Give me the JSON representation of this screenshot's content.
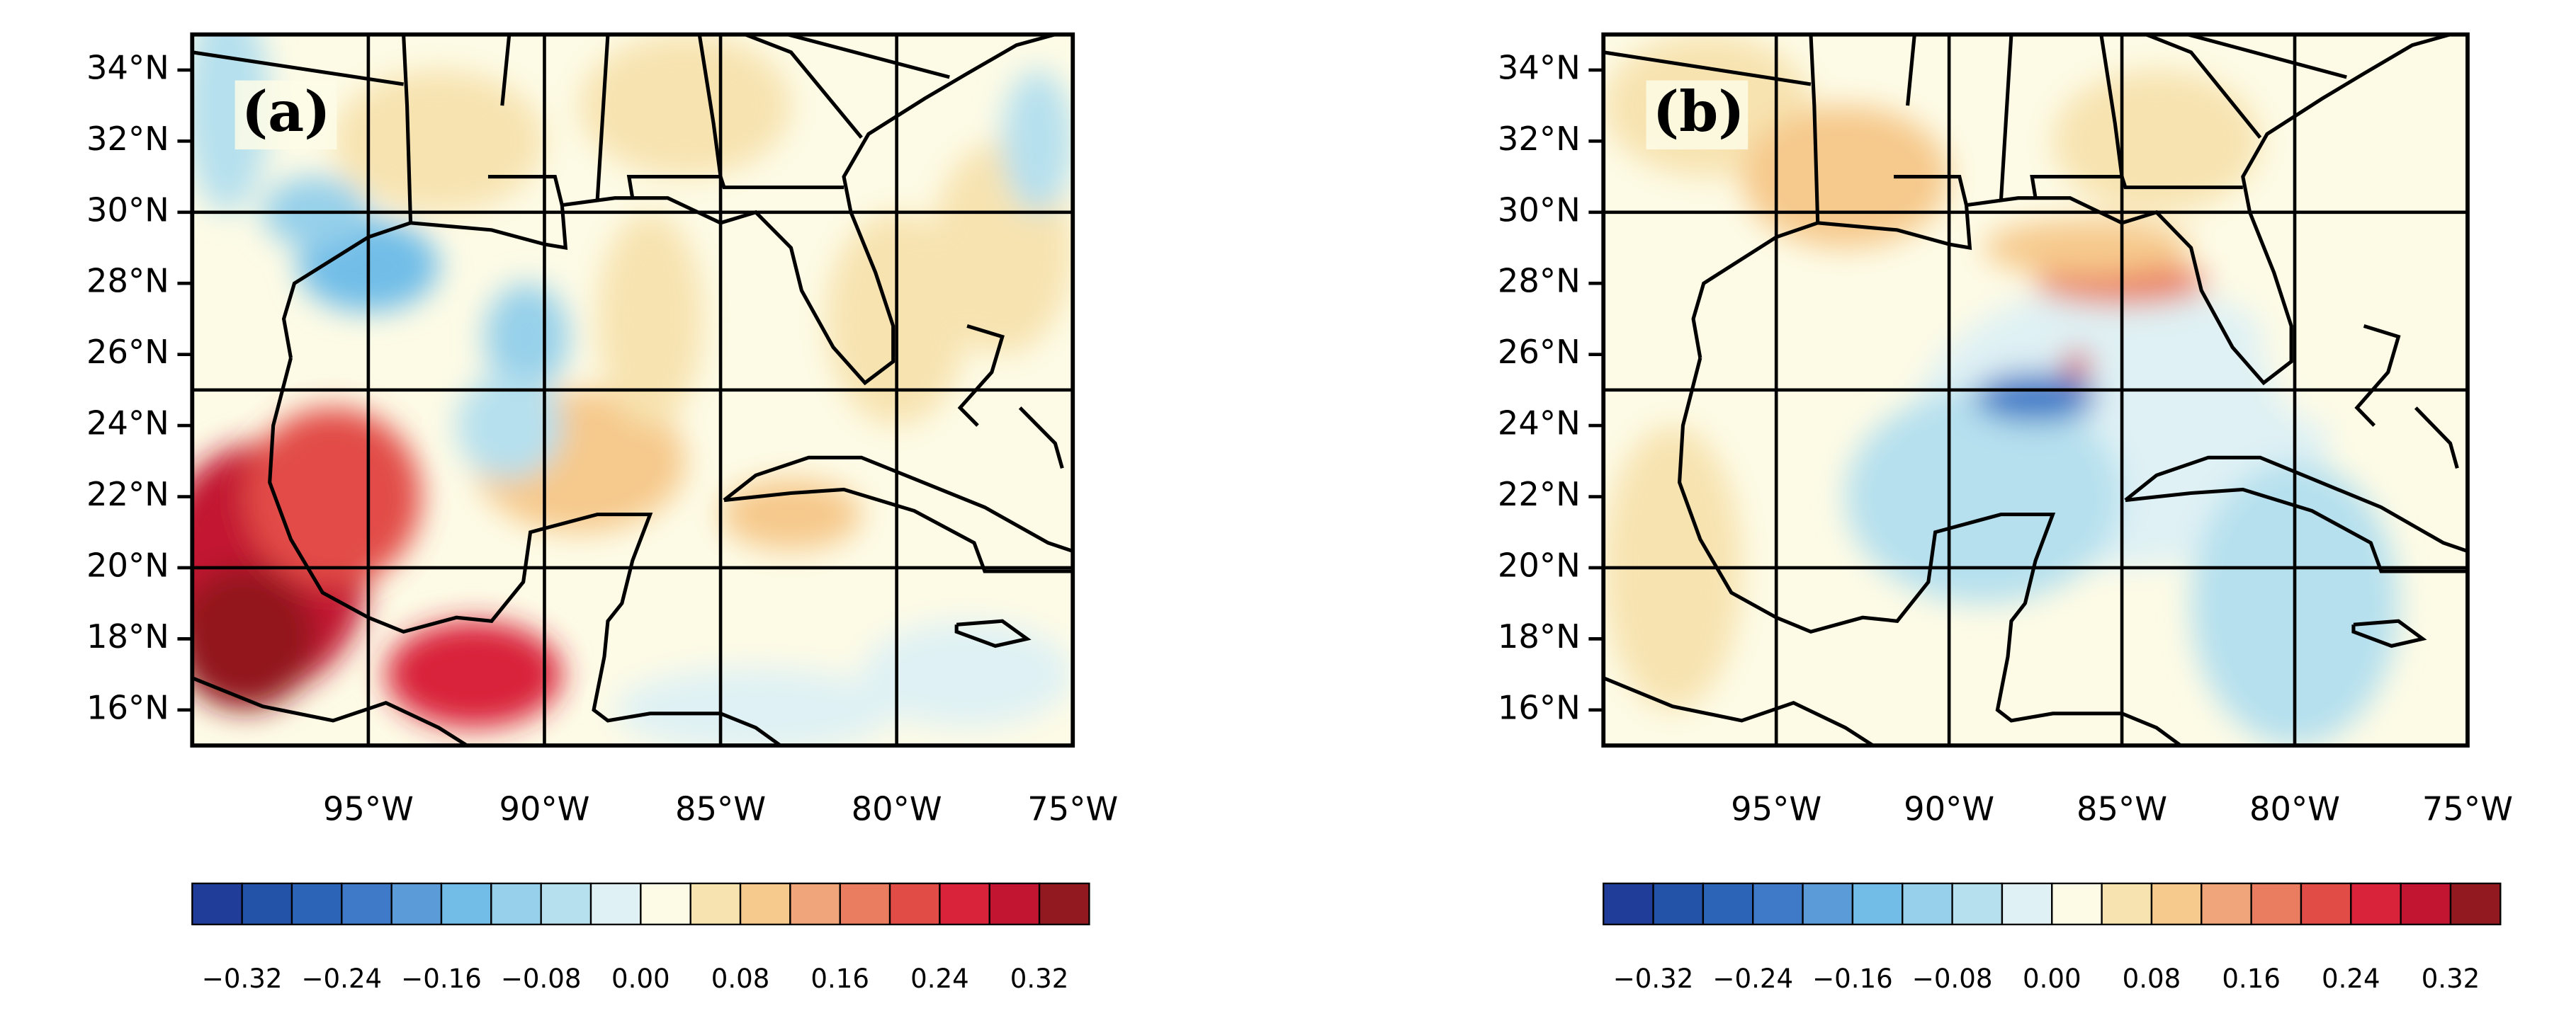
{
  "panels": [
    {
      "label": "(a)",
      "xlim": [
        -100,
        -75
      ],
      "ylim": [
        15,
        35
      ],
      "xticks": [
        {
          "value": -95,
          "label": "95°W"
        },
        {
          "value": -90,
          "label": "90°W"
        },
        {
          "value": -85,
          "label": "85°W"
        },
        {
          "value": -80,
          "label": "80°W"
        },
        {
          "value": -75,
          "label": "75°W"
        }
      ],
      "yticks": [
        {
          "value": 16,
          "label": "16°N"
        },
        {
          "value": 18,
          "label": "18°N"
        },
        {
          "value": 20,
          "label": "20°N"
        },
        {
          "value": 22,
          "label": "22°N"
        },
        {
          "value": 24,
          "label": "24°N"
        },
        {
          "value": 26,
          "label": "26°N"
        },
        {
          "value": 28,
          "label": "28°N"
        },
        {
          "value": 30,
          "label": "30°N"
        },
        {
          "value": 32,
          "label": "32°N"
        },
        {
          "value": 34,
          "label": "34°N"
        }
      ],
      "lat_grid": [
        20,
        25,
        30
      ]
    },
    {
      "label": "(b)",
      "xlim": [
        -100,
        -75
      ],
      "ylim": [
        15,
        35
      ],
      "xticks": [
        {
          "value": -95,
          "label": "95°W"
        },
        {
          "value": -90,
          "label": "90°W"
        },
        {
          "value": -85,
          "label": "85°W"
        },
        {
          "value": -80,
          "label": "80°W"
        },
        {
          "value": -75,
          "label": "75°W"
        }
      ],
      "yticks": [
        {
          "value": 16,
          "label": "16°N"
        },
        {
          "value": 18,
          "label": "18°N"
        },
        {
          "value": 20,
          "label": "20°N"
        },
        {
          "value": 22,
          "label": "22°N"
        },
        {
          "value": 24,
          "label": "24°N"
        },
        {
          "value": 26,
          "label": "26°N"
        },
        {
          "value": 28,
          "label": "28°N"
        },
        {
          "value": 30,
          "label": "30°N"
        },
        {
          "value": 32,
          "label": "32°N"
        },
        {
          "value": 34,
          "label": "34°N"
        }
      ],
      "lat_grid": [
        20,
        25,
        30
      ]
    }
  ],
  "colorbar": {
    "clim": [
      -0.36,
      0.36
    ],
    "colors": [
      "#1f3d99",
      "#2353a8",
      "#2c65b8",
      "#3e7ac8",
      "#5b9bd8",
      "#71bde8",
      "#96d0ea",
      "#b6e0ee",
      "#dff1f4",
      "#fdfbe6",
      "#f7e3b0",
      "#f6c98c",
      "#f1a57a",
      "#ea7c5f",
      "#e24c47",
      "#d9233a",
      "#c21532",
      "#92191f"
    ],
    "ticks": [
      {
        "value": -0.32,
        "label": "−0.32"
      },
      {
        "value": -0.24,
        "label": "−0.24"
      },
      {
        "value": -0.16,
        "label": "−0.16"
      },
      {
        "value": -0.08,
        "label": "−0.08"
      },
      {
        "value": 0,
        "label": "0.00"
      },
      0.08,
      0.16,
      0.24,
      0.32
    ]
  }
}
